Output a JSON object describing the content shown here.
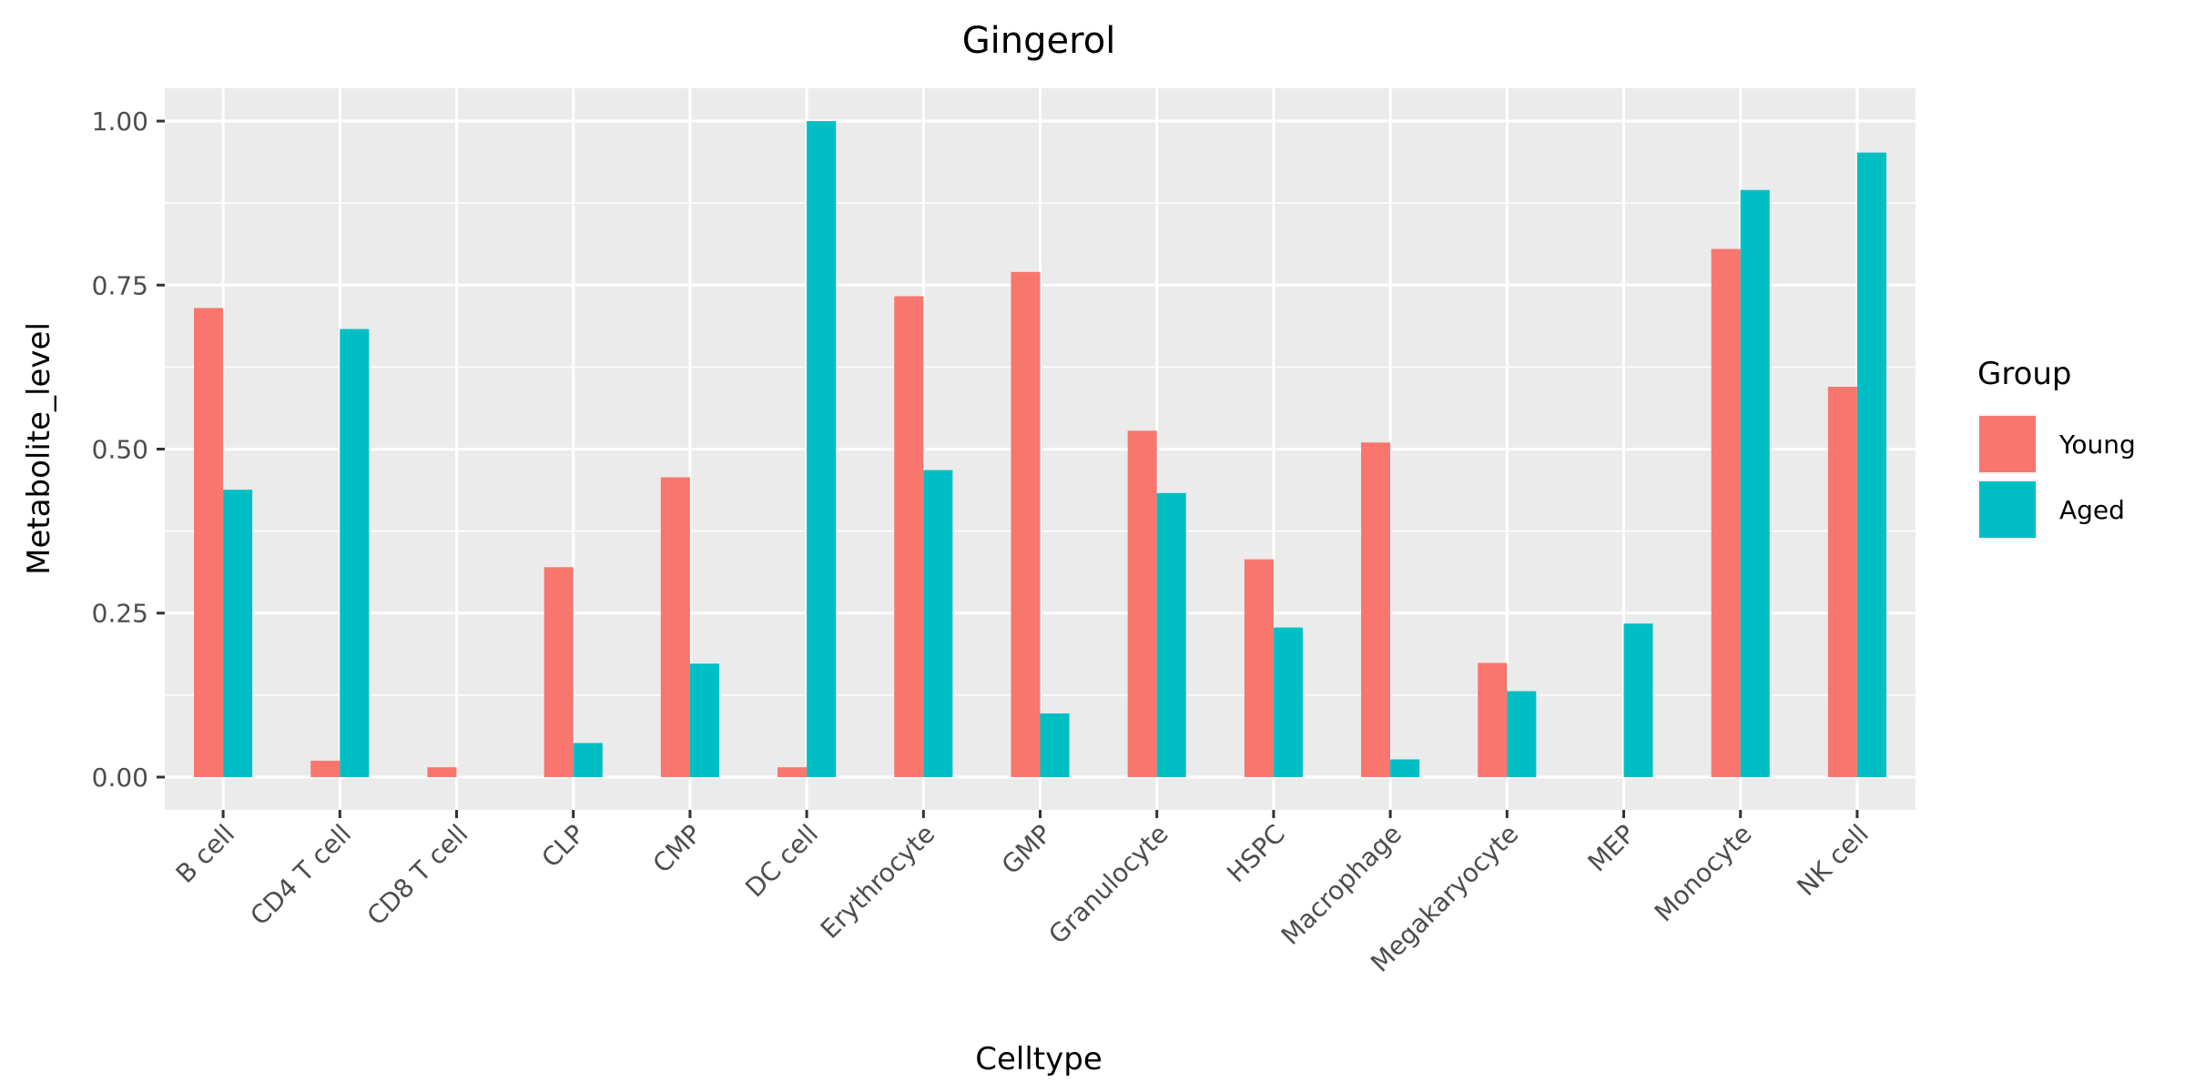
{
  "chart_data": {
    "type": "bar",
    "title": "Gingerol",
    "xlabel": "Celltype",
    "ylabel": "Metabolite_level",
    "ylim": [
      -0.05,
      1.05
    ],
    "yticks": [
      0.0,
      0.25,
      0.5,
      0.75,
      1.0
    ],
    "ytick_labels": [
      "0.00",
      "0.25",
      "0.50",
      "0.75",
      "1.00"
    ],
    "categories": [
      "B cell",
      "CD4 T cell",
      "CD8 T cell",
      "CLP",
      "CMP",
      "DC cell",
      "Erythrocyte",
      "GMP",
      "Granulocyte",
      "HSPC",
      "Macrophage",
      "Megakaryocyte",
      "MEP",
      "Monocyte",
      "NK cell"
    ],
    "series": [
      {
        "name": "Young",
        "color": "#F8766D",
        "values": [
          0.715,
          0.025,
          0.015,
          0.32,
          0.457,
          0.015,
          0.733,
          0.77,
          0.528,
          0.332,
          0.51,
          0.174,
          0.0,
          0.805,
          0.595
        ]
      },
      {
        "name": "Aged",
        "color": "#00BFC4",
        "values": [
          0.438,
          0.683,
          0.0,
          0.052,
          0.173,
          1.0,
          0.468,
          0.097,
          0.433,
          0.228,
          0.027,
          0.131,
          0.234,
          0.895,
          0.952
        ]
      }
    ],
    "grid": true,
    "panel_background": "#EBEBEB",
    "legend": {
      "title": "Group",
      "position": "right"
    }
  }
}
